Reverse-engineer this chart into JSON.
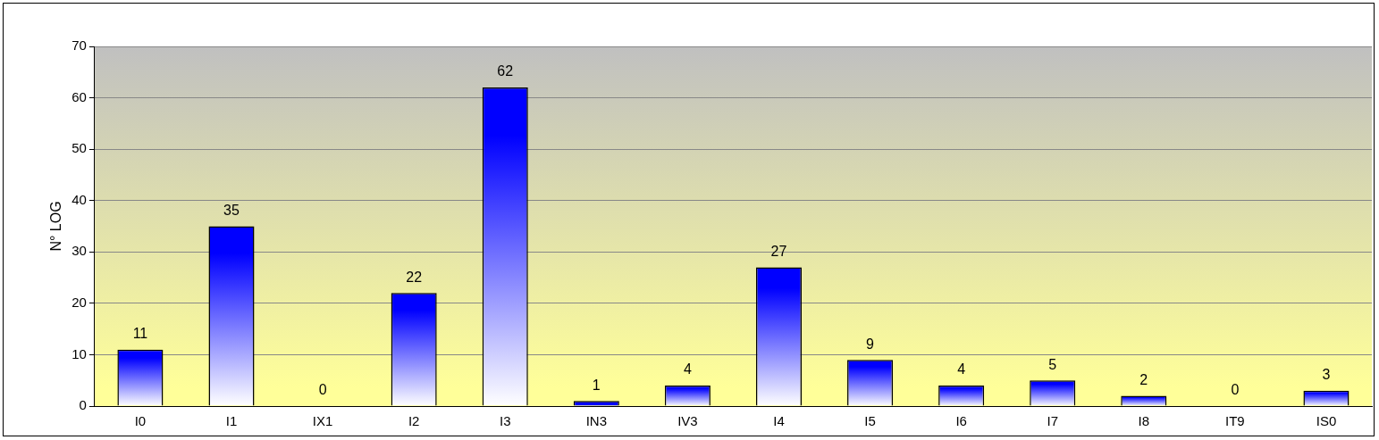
{
  "chart_data": {
    "type": "bar",
    "ylabel": "N° LOG",
    "categories": [
      "I0",
      "I1",
      "IX1",
      "I2",
      "I3",
      "IN3",
      "IV3",
      "I4",
      "I5",
      "I6",
      "I7",
      "I8",
      "IT9",
      "IS0"
    ],
    "values": [
      11,
      35,
      0,
      22,
      62,
      1,
      4,
      27,
      9,
      4,
      5,
      2,
      0,
      3
    ],
    "color": "#0000ff",
    "ylim": [
      0,
      70
    ],
    "yticks": [
      0,
      10,
      20,
      30,
      40,
      50,
      60,
      70
    ],
    "grid": "y",
    "data_labels": true,
    "legend": false
  }
}
